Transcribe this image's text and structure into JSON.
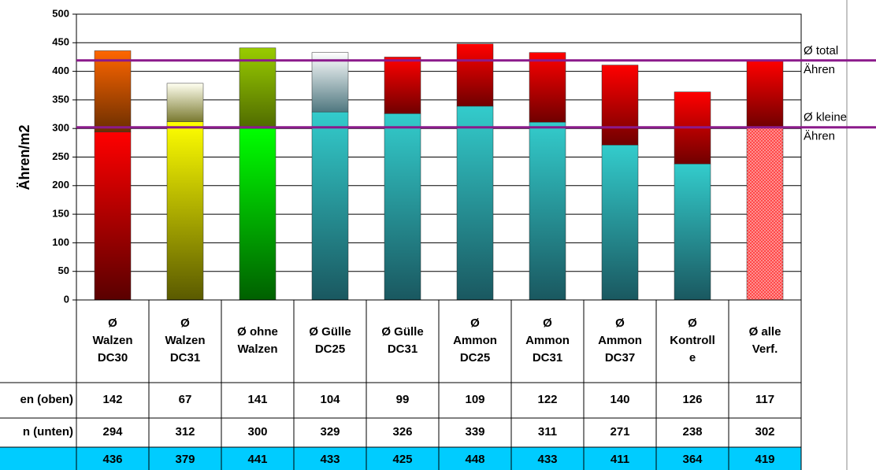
{
  "chart_data": {
    "type": "stacked-bar",
    "y_label": "Ähren/m2",
    "categories": [
      "Ø\nWalzen\nDC30",
      "Ø\nWalzen\nDC31",
      "Ø ohne\nWalzen",
      "Ø Gülle\nDC25",
      "Ø Gülle\nDC31",
      "Ø\nAmmon\nDC25",
      "Ø\nAmmon\nDC31",
      "Ø\nAmmon\nDC37",
      "Ø\nKontroll\ne",
      "Ø alle\nVerf."
    ],
    "series": [
      {
        "name": "n (unten)",
        "values": [
          294,
          312,
          300,
          329,
          326,
          339,
          311,
          271,
          238,
          302
        ],
        "colors": [
          [
            "#ff0000",
            "#5a0000"
          ],
          [
            "#ffff00",
            "#5a5a00"
          ],
          [
            "#00ff00",
            "#006000"
          ],
          [
            "#33cccc",
            "#1a5860"
          ],
          [
            "#33cccc",
            "#1a5860"
          ],
          [
            "#33cccc",
            "#1a5860"
          ],
          [
            "#33cccc",
            "#1a5860"
          ],
          [
            "#33cccc",
            "#1a5860"
          ],
          [
            "#33cccc",
            "#1a5860"
          ],
          [
            "#ff3030",
            "#ff9090"
          ]
        ]
      },
      {
        "name": "en (oben)",
        "values": [
          142,
          67,
          141,
          104,
          99,
          109,
          122,
          140,
          126,
          117
        ],
        "colors": [
          [
            "#ff6600",
            "#6b2e00"
          ],
          [
            "#fffff0",
            "#7a7a30"
          ],
          [
            "#99cc00",
            "#4f6a00"
          ],
          [
            "#ffffff",
            "#507880"
          ],
          [
            "#ff0000",
            "#700000"
          ],
          [
            "#ff0000",
            "#700000"
          ],
          [
            "#ff0000",
            "#700000"
          ],
          [
            "#ff0000",
            "#700000"
          ],
          [
            "#ff0000",
            "#700000"
          ],
          [
            "#ff0000",
            "#700000"
          ]
        ]
      }
    ],
    "totals": [
      436,
      379,
      441,
      433,
      425,
      448,
      433,
      411,
      364,
      419
    ],
    "reference_lines": [
      {
        "label": "Ø total\nÄhren",
        "value": 419,
        "color": "#8b1a8b"
      },
      {
        "label": "Ø kleine\nÄhren",
        "value": 302,
        "color": "#8b1a8b"
      }
    ],
    "ylim": [
      0,
      500
    ],
    "yticks": [
      0,
      50,
      100,
      150,
      200,
      250,
      300,
      350,
      400,
      450,
      500
    ],
    "grid": true
  }
}
